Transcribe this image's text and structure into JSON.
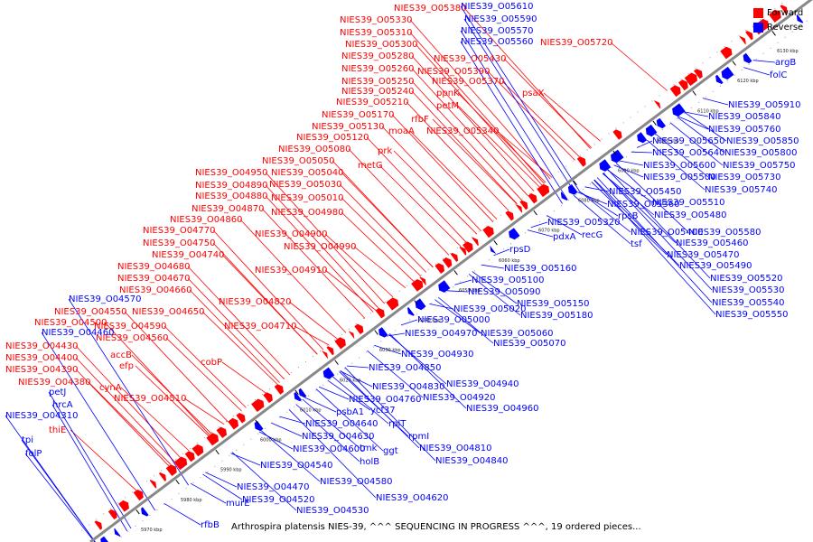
{
  "caption": "Arthrospira platensis NIES-39, ^^^ SEQUENCING IN PROGRESS ^^^, 19 ordered pieces...",
  "legend": {
    "forward_label": "Forward",
    "reverse_label": "Reverse",
    "forward_color": "#ff0000",
    "reverse_color": "#0000ff"
  },
  "colors": {
    "backbone": "#888888",
    "forward": "#ff0000",
    "reverse": "#0000ff",
    "tick": "#000000"
  },
  "ticks": [
    "5970 kbp",
    "5980 kbp",
    "5990 kbp",
    "6000 kbp",
    "6010 kbp",
    "6020 kbp",
    "6030 kbp",
    "6040 kbp",
    "6050 kbp",
    "6060 kbp",
    "6070 kbp",
    "6080 kbp",
    "6090 kbp",
    "6100 kbp",
    "6110 kbp",
    "6120 kbp",
    "6130 kbp"
  ],
  "forward_labels": [
    "NIES39_O05380",
    "NIES39_O05330",
    "NIES39_O05310",
    "NIES39_O05300",
    "NIES39_O05280",
    "NIES39_O05260",
    "NIES39_O05250",
    "NIES39_O05240",
    "NIES39_O05210",
    "NIES39_O05170",
    "NIES39_O05130",
    "NIES39_O05120",
    "NIES39_O05080",
    "NIES39_O05050",
    "NIES39_O05040",
    "NIES39_O05030",
    "NIES39_O05010",
    "NIES39_O04950",
    "NIES39_O04890",
    "NIES39_O04880",
    "NIES39_O04870",
    "NIES39_O04860",
    "NIES39_O04770",
    "NIES39_O04750",
    "NIES39_O04740",
    "NIES39_O04680",
    "NIES39_O04670",
    "NIES39_O04660",
    "NIES39_O04550",
    "NIES39_O04500",
    "NIES39_O04430",
    "NIES39_O04400",
    "NIES39_O04390",
    "NIES39_O04380",
    "NIES39_O05720",
    "NIES39_O05430",
    "NIES39_O05390",
    "NIES39_O05370",
    "ppnK",
    "petM",
    "rfbF",
    "NIES39_O05340",
    "moaA",
    "prk",
    "metG",
    "psaX",
    "NIES39_O04980",
    "NIES39_O04900",
    "NIES39_O04990",
    "NIES39_O04910",
    "NIES39_O04820",
    "NIES39_O04650",
    "NIES39_O04590",
    "NIES39_O04710",
    "NIES39_O04560",
    "accB",
    "efp",
    "cobP",
    "cynA",
    "NIES39_O04510",
    "thiE"
  ],
  "reverse_labels": [
    "NIES39_O05610",
    "NIES39_O05590",
    "NIES39_O05570",
    "NIES39_O05560",
    "argB",
    "folC",
    "NIES39_O05910",
    "NIES39_O05840",
    "NIES39_O05760",
    "NIES39_O05850",
    "NIES39_O05650",
    "NIES39_O05800",
    "NIES39_O05640",
    "NIES39_O05750",
    "NIES39_O05600",
    "NIES39_O05730",
    "NIES39_O05500",
    "NIES39_O05740",
    "NIES39_O05450",
    "NIES39_O05510",
    "NIES39_O05360",
    "rpsB",
    "NIES39_O05480",
    "NIES39_O05320",
    "recG",
    "tsf",
    "NIES39_O05400",
    "NIES39_O05580",
    "NIES39_O05460",
    "pdxA",
    "rpsD",
    "NIES39_O05470",
    "NIES39_O05490",
    "NIES39_O05160",
    "NIES39_O05100",
    "NIES39_O05520",
    "NIES39_O05090",
    "NIES39_O05530",
    "NIES39_O05150",
    "NIES39_O05540",
    "NIES39_O05020",
    "NIES39_O05180",
    "NIES39_O05550",
    "NIES39_O05000",
    "NIES39_O05060",
    "NIES39_O04970",
    "NIES39_O05070",
    "NIES39_O04930",
    "NIES39_O04850",
    "NIES39_O04940",
    "NIES39_O04830",
    "NIES39_O04920",
    "psbA1",
    "ycf37",
    "NIES39_O04760",
    "NIES39_O04960",
    "rplT",
    "NIES39_O04640",
    "rpmI",
    "NIES39_O04630",
    "tmk",
    "ggt",
    "NIES39_O04600",
    "holB",
    "NIES39_O04810",
    "NIES39_O04840",
    "NIES39_O04540",
    "NIES39_O04580",
    "NIES39_O04470",
    "NIES39_O04620",
    "NIES39_O04520",
    "NIES39_O04530",
    "murE",
    "rfbB",
    "NIES39_O04570",
    "NIES39_O04460",
    "petJ",
    "hrcA",
    "NIES39_O04310",
    "tpi",
    "folP"
  ]
}
